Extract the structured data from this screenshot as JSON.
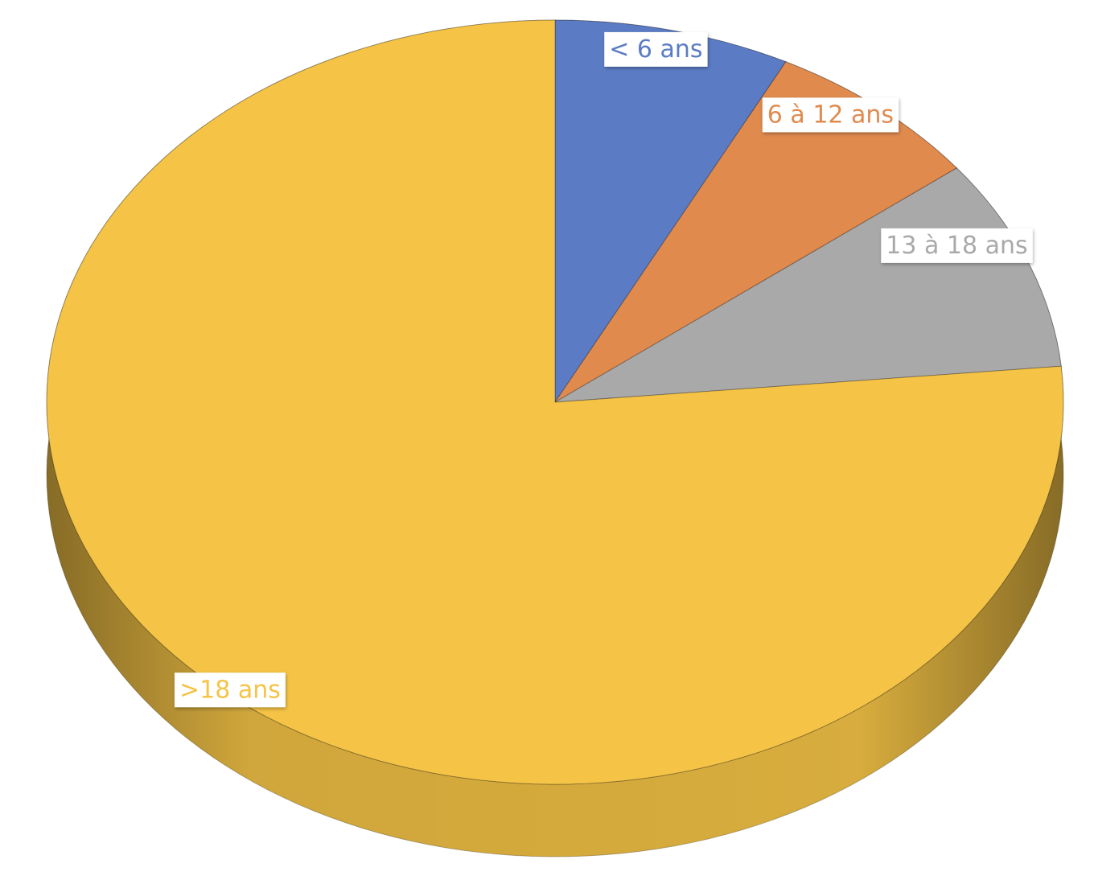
{
  "chart_data": {
    "type": "pie",
    "categories": [
      "< 6 ans",
      "6 à 12 ans",
      "13 à 18 ans",
      ">18 ans"
    ],
    "values": [
      7.5,
      7,
      9,
      76.5
    ],
    "colors": [
      "#5b7cc4",
      "#e08a4e",
      "#a9a9a9",
      "#f5c446"
    ]
  }
}
